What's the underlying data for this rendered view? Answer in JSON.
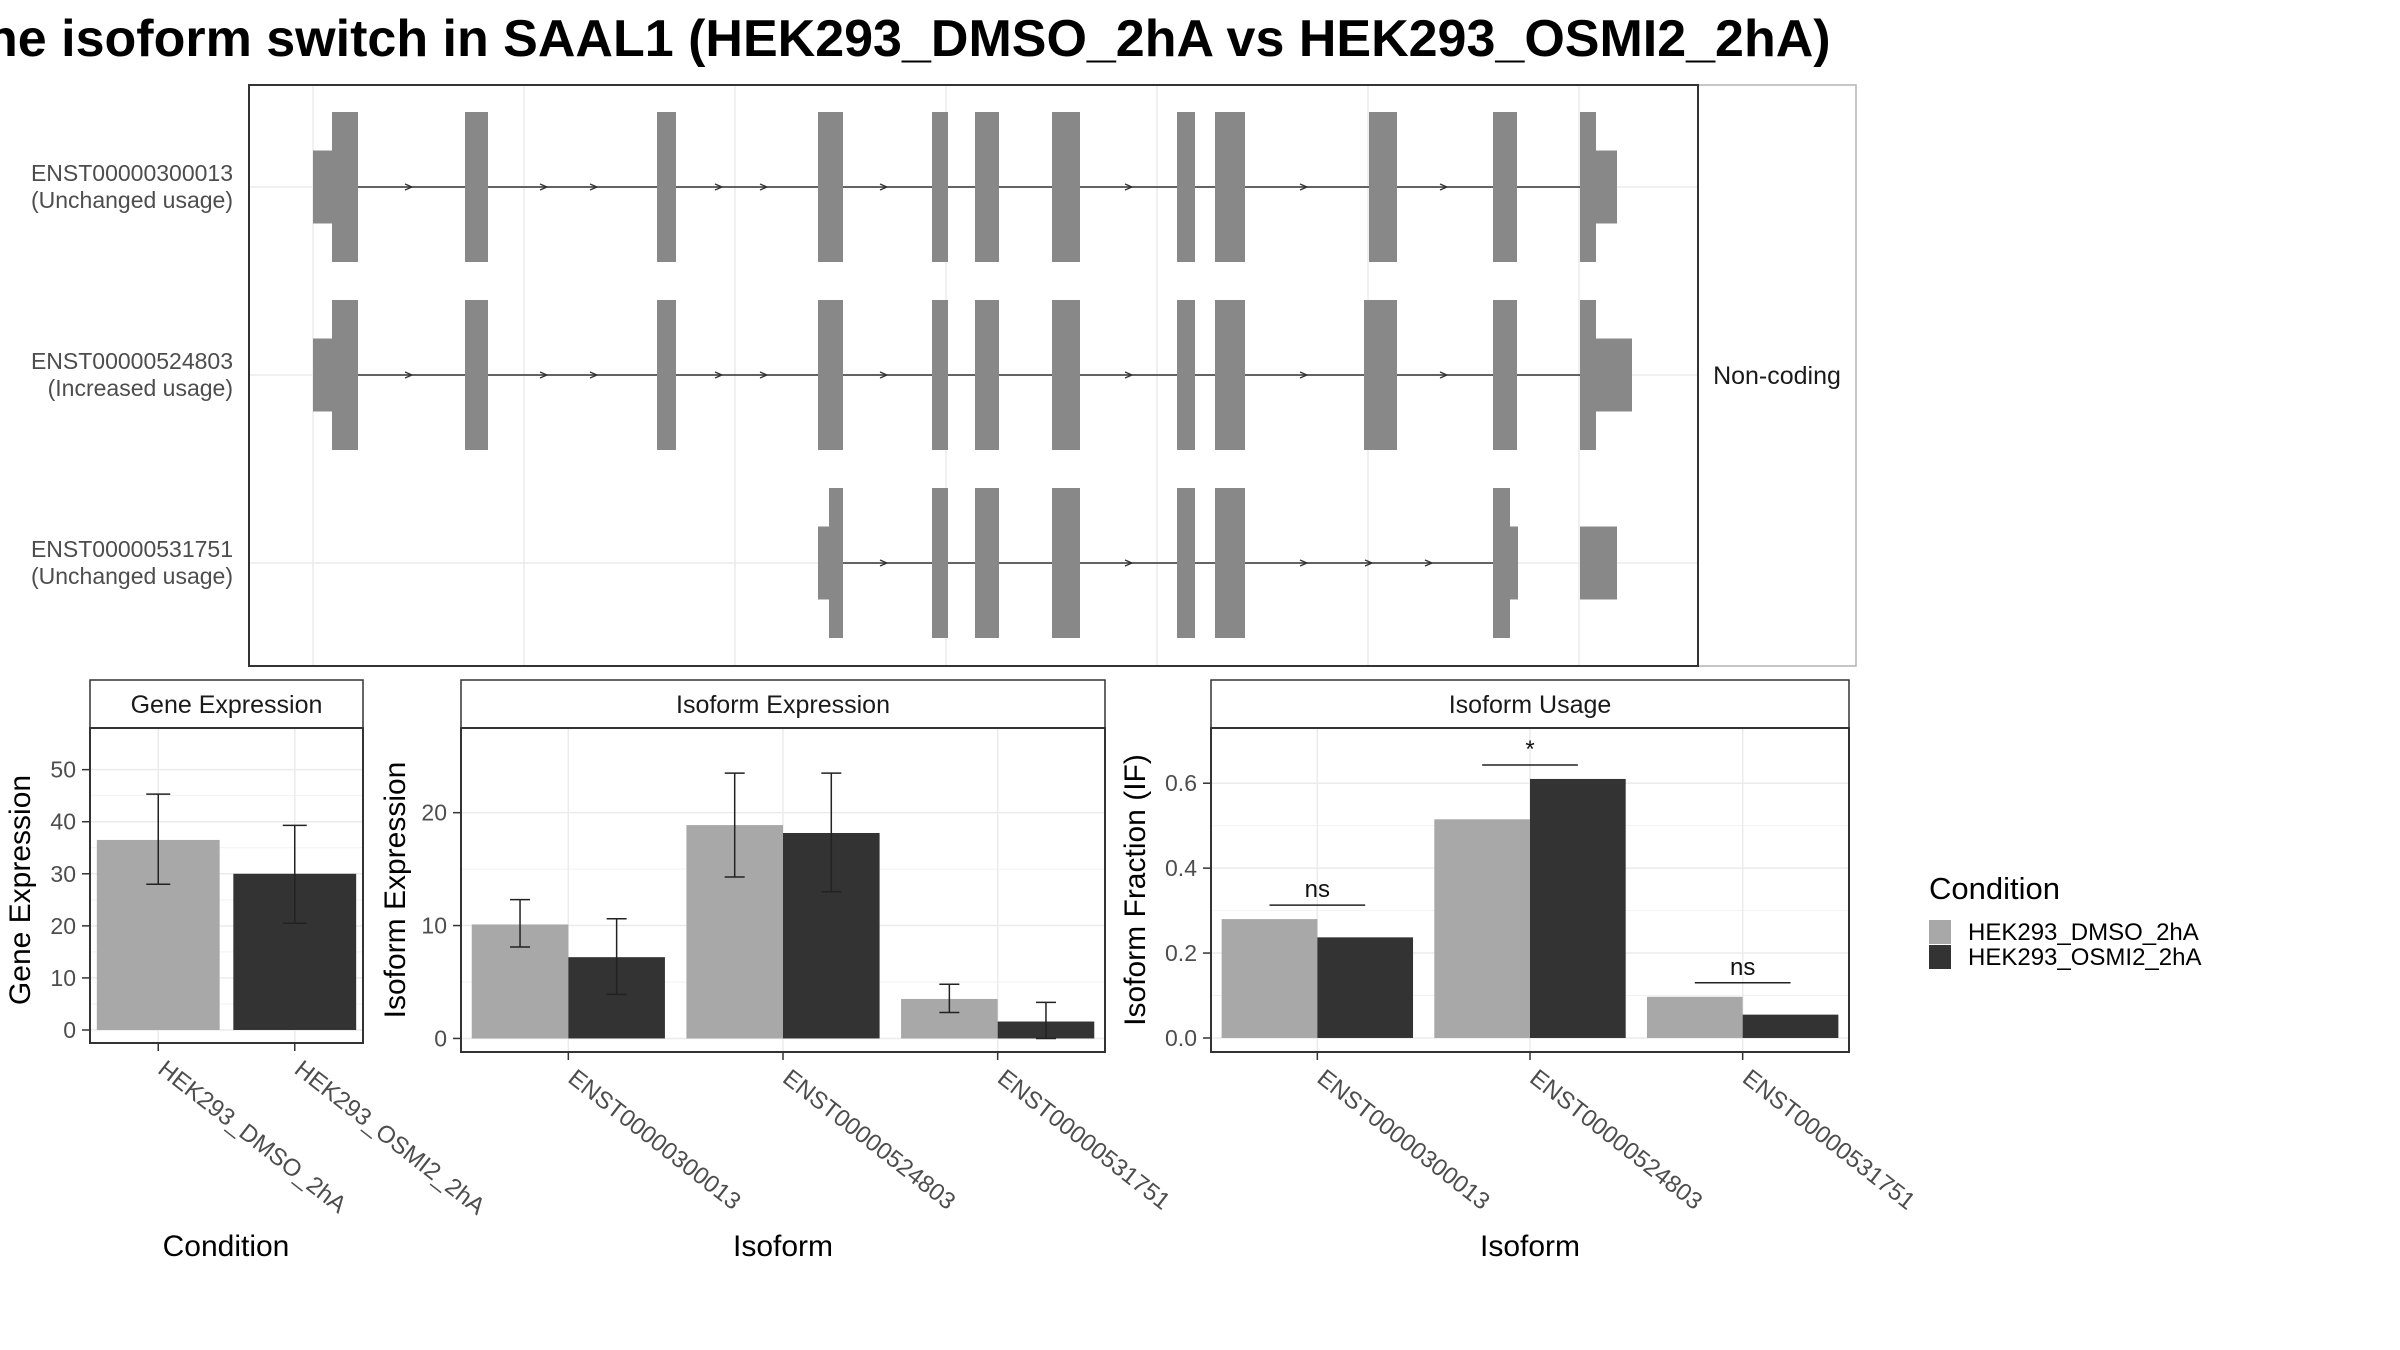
{
  "title": "ne isoform switch in SAAL1 (HEK293_DMSO_2hA vs HEK293_OSMI2_2hA)",
  "colors": {
    "DMSO": "#a8a8a8",
    "OSMI2": "#333333",
    "exon": "#888888"
  },
  "transcripts": {
    "facet_label": "Non-coding",
    "rows": [
      {
        "id": "ENST00000300013",
        "status": "(Unchanged usage)"
      },
      {
        "id": "ENST00000524803",
        "status": "(Increased usage)"
      },
      {
        "id": "ENST00000531751",
        "status": "(Unchanged usage)"
      }
    ]
  },
  "legend": {
    "title": "Condition",
    "items": [
      "HEK293_DMSO_2hA",
      "HEK293_OSMI2_2hA"
    ]
  },
  "chart_data": [
    {
      "type": "bar",
      "title": "Gene Expression",
      "xlabel": "Condition",
      "ylabel": "Gene Expression",
      "categories": [
        "HEK293_DMSO_2hA",
        "HEK293_OSMI2_2hA"
      ],
      "values": [
        36.5,
        30.0
      ],
      "error_low": [
        28.0,
        20.5
      ],
      "error_high": [
        45.3,
        39.3
      ],
      "ylim": [
        -2.5,
        58
      ],
      "yticks": [
        0,
        10,
        20,
        30,
        40,
        50
      ]
    },
    {
      "type": "bar",
      "title": "Isoform Expression",
      "xlabel": "Isoform",
      "ylabel": "Isoform Expression",
      "categories": [
        "ENST00000300013",
        "ENST00000524803",
        "ENST00000531751"
      ],
      "series": [
        {
          "name": "HEK293_DMSO_2hA",
          "values": [
            10.1,
            18.9,
            3.5
          ],
          "error_low": [
            8.1,
            14.3,
            2.3
          ],
          "error_high": [
            12.3,
            23.5,
            4.8
          ]
        },
        {
          "name": "HEK293_OSMI2_2hA",
          "values": [
            7.2,
            18.2,
            1.5
          ],
          "error_low": [
            3.9,
            13.0,
            0.0
          ],
          "error_high": [
            10.6,
            23.5,
            3.2
          ]
        }
      ],
      "ylim": [
        -1.2,
        27.5
      ],
      "yticks": [
        0,
        10,
        20
      ]
    },
    {
      "type": "bar",
      "title": "Isoform Usage",
      "xlabel": "Isoform",
      "ylabel": "Isoform Fraction (IF)",
      "categories": [
        "ENST00000300013",
        "ENST00000524803",
        "ENST00000531751"
      ],
      "series": [
        {
          "name": "HEK293_DMSO_2hA",
          "values": [
            0.28,
            0.515,
            0.097
          ]
        },
        {
          "name": "HEK293_OSMI2_2hA",
          "values": [
            0.237,
            0.61,
            0.055
          ]
        }
      ],
      "significance": [
        "ns",
        "*",
        "ns"
      ],
      "ylim": [
        -0.033,
        0.73
      ],
      "yticks": [
        0.0,
        0.2,
        0.4,
        0.6
      ],
      "ytick_labels": [
        "0.0",
        "0.2",
        "0.4",
        "0.6"
      ]
    }
  ]
}
